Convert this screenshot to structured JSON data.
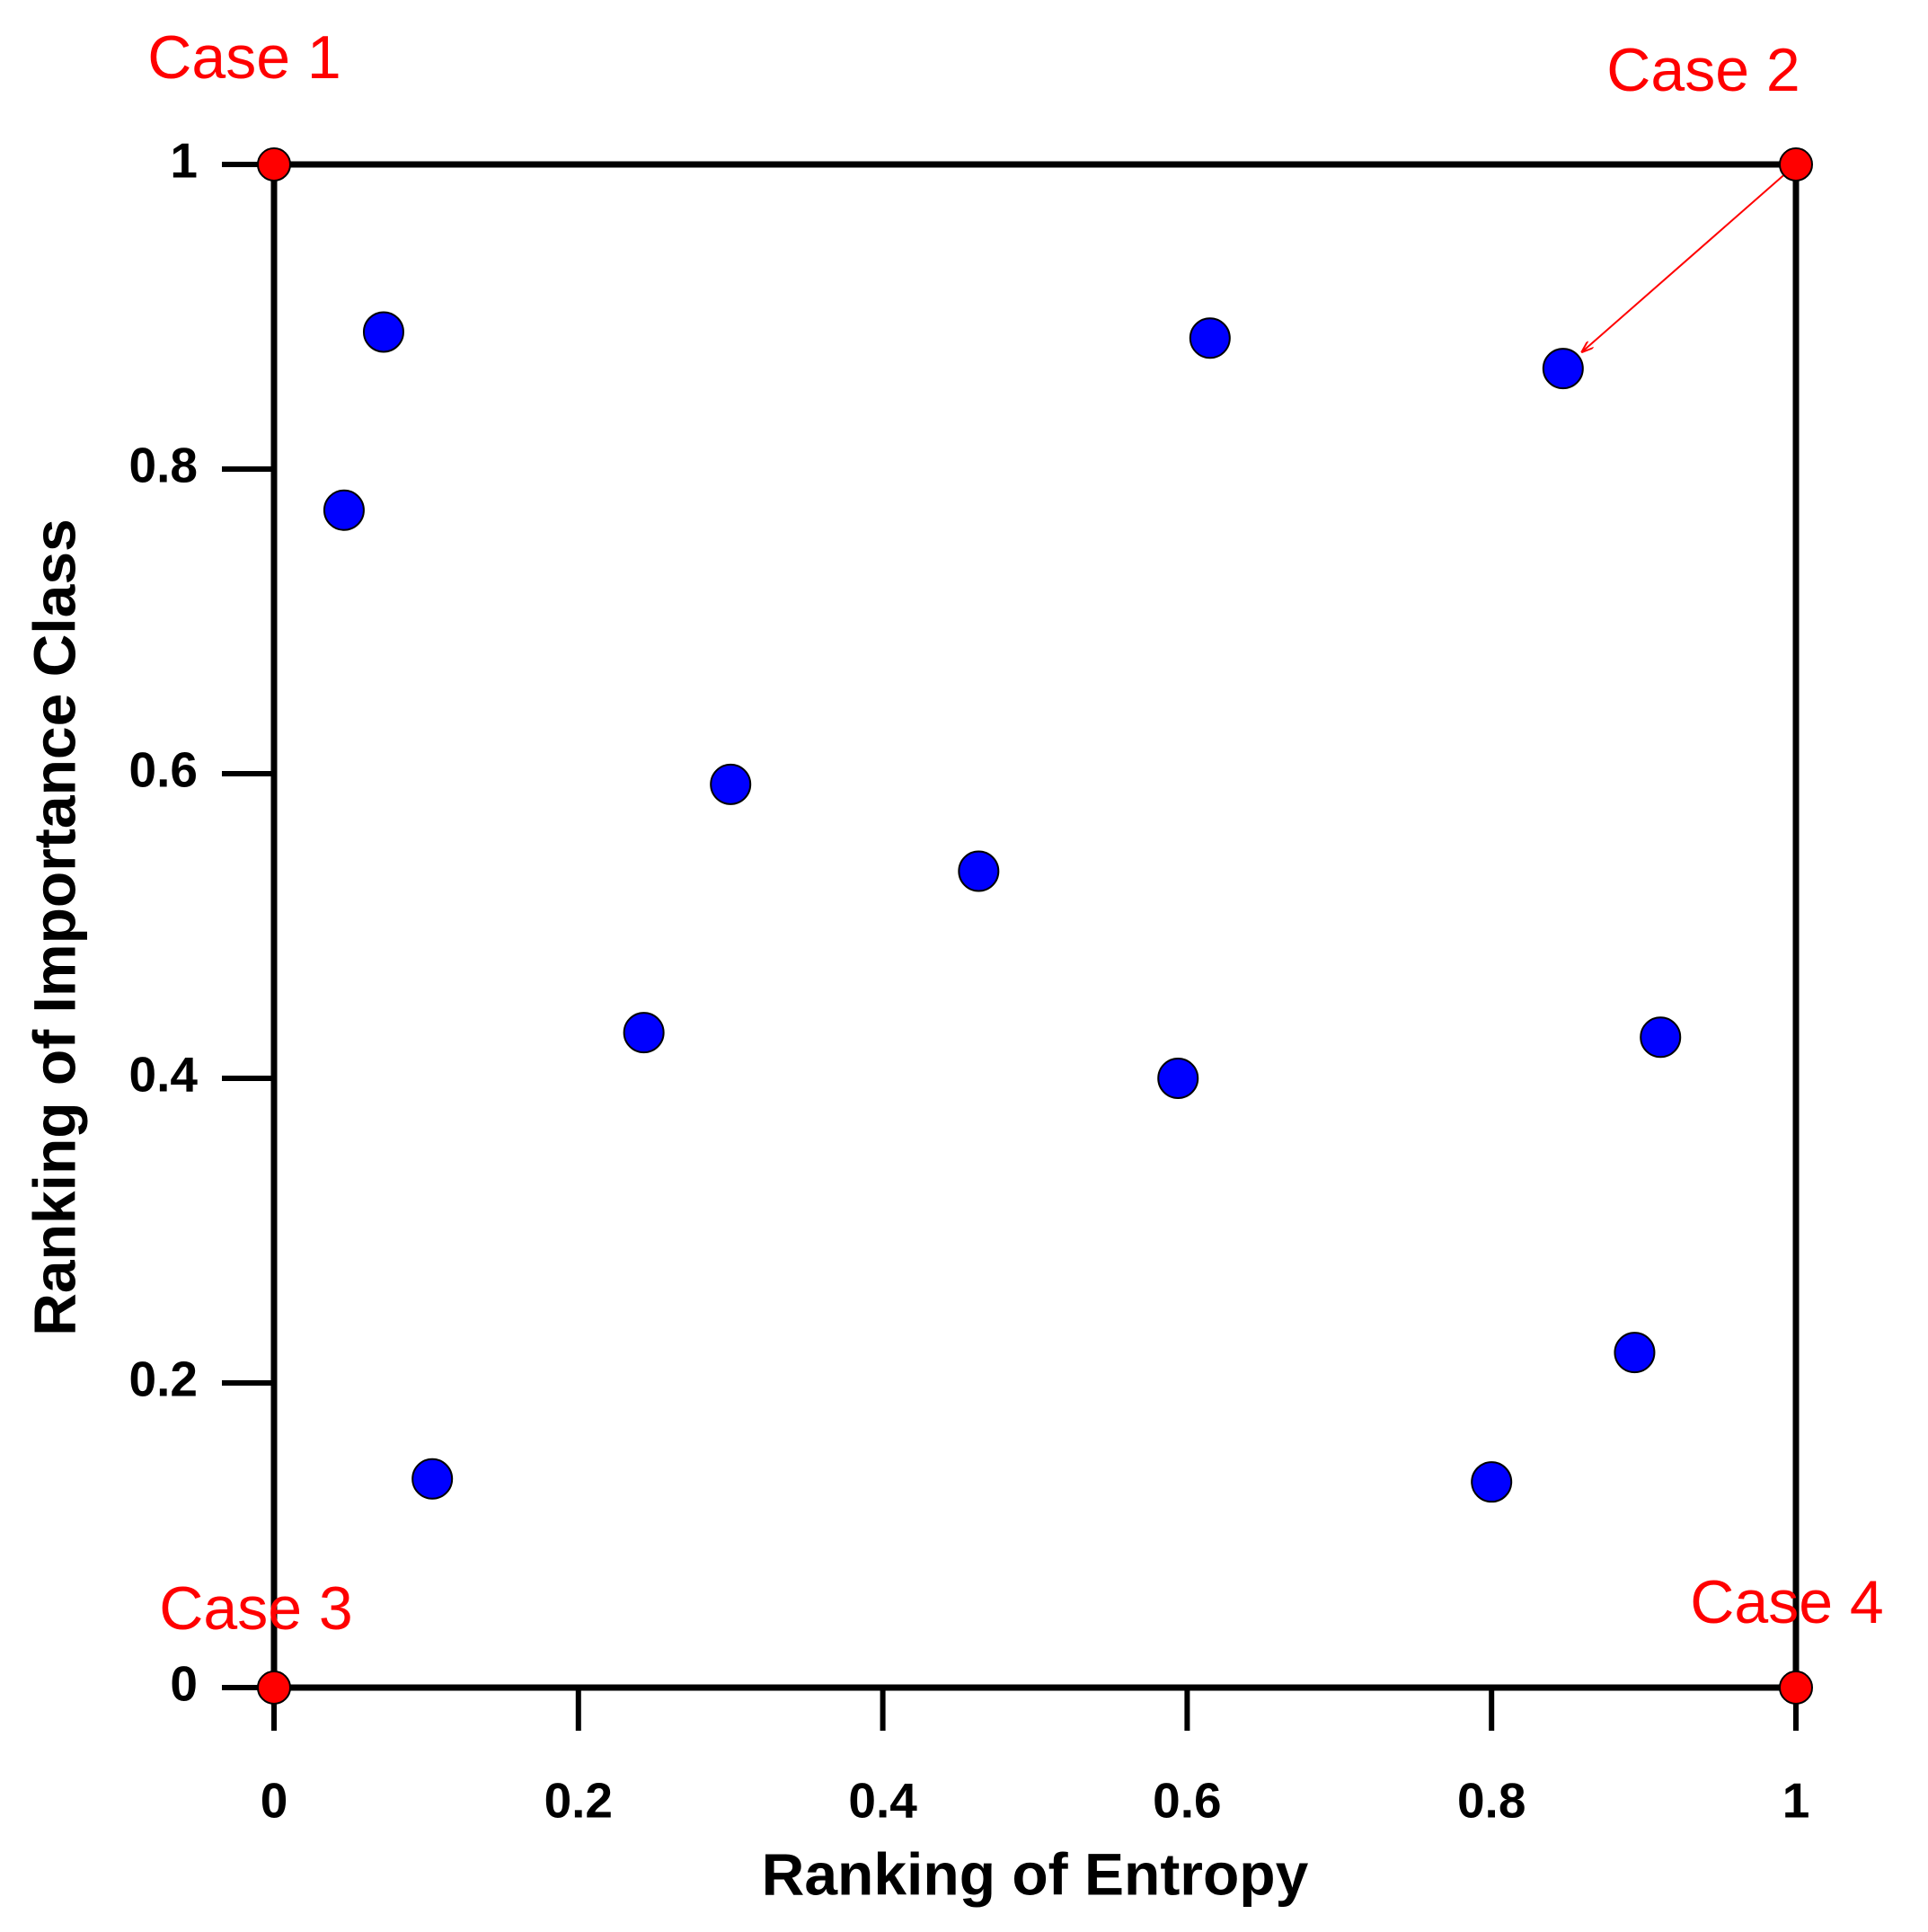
{
  "chart_data": {
    "type": "scatter",
    "xlabel": "Ranking of Entropy",
    "ylabel": "Ranking of Importance Class",
    "series": [
      {
        "color": "#0000ff",
        "x": [
          0.072,
          0.046,
          0.615,
          0.847,
          0.3,
          0.463,
          0.243,
          0.594,
          0.911,
          0.894,
          0.104,
          0.8
        ],
        "values": [
          0.89,
          0.773,
          0.886,
          0.866,
          0.593,
          0.536,
          0.43,
          0.4,
          0.427,
          0.22,
          0.137,
          0.135
        ]
      },
      {
        "color": "#ff0000",
        "x": [
          0,
          1,
          0,
          1
        ],
        "values": [
          1,
          1,
          0,
          0
        ]
      }
    ],
    "annotations": [
      "Case 1",
      "Case 2",
      "Case 3",
      "Case 4"
    ],
    "xlim": [
      0,
      1
    ],
    "ylim": [
      0,
      1
    ],
    "xticks": [
      0,
      0.2,
      0.4,
      0.6,
      0.8,
      1
    ],
    "yticks": [
      0,
      0.2,
      0.4,
      0.6,
      0.8,
      1
    ],
    "grid": false
  }
}
